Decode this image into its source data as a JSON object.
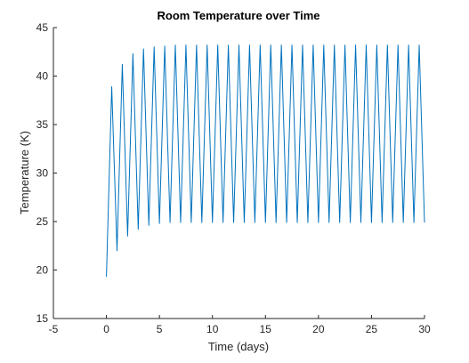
{
  "chart_data": {
    "type": "line",
    "title": "Room Temperature over Time",
    "xlabel": "Time (days)",
    "ylabel": "Temperature (K)",
    "xlim": [
      -5,
      30
    ],
    "ylim": [
      15,
      45
    ],
    "xticks": [
      -5,
      0,
      5,
      10,
      15,
      20,
      25,
      30
    ],
    "yticks": [
      15,
      20,
      25,
      30,
      35,
      40,
      45
    ],
    "grid": false,
    "legend": "none",
    "series": [
      {
        "color": "#0072BD",
        "x": [
          0,
          0.5,
          1,
          1.5,
          2,
          2.5,
          3,
          3.5,
          4,
          4.5,
          5,
          5.5,
          6,
          6.5,
          7,
          7.5,
          8,
          8.5,
          9,
          9.5,
          10,
          10.5,
          11,
          11.5,
          12,
          12.5,
          13,
          13.5,
          14,
          14.5,
          15,
          15.5,
          16,
          16.5,
          17,
          17.5,
          18,
          18.5,
          19,
          19.5,
          20,
          20.5,
          21,
          21.5,
          22,
          22.5,
          23,
          23.5,
          24,
          24.5,
          25,
          25.5,
          26,
          26.5,
          27,
          27.5,
          28,
          28.5,
          29,
          29.5,
          30
        ],
        "y": [
          19.3,
          38.9,
          22.0,
          41.2,
          23.5,
          42.3,
          24.2,
          42.8,
          24.6,
          43.0,
          24.8,
          43.1,
          24.9,
          43.2,
          24.9,
          43.2,
          24.9,
          43.2,
          24.9,
          43.2,
          24.9,
          43.2,
          24.9,
          43.2,
          24.9,
          43.2,
          24.9,
          43.2,
          24.9,
          43.2,
          24.9,
          43.2,
          24.9,
          43.2,
          24.9,
          43.2,
          24.9,
          43.2,
          24.9,
          43.2,
          24.9,
          43.2,
          24.9,
          43.2,
          24.9,
          43.2,
          24.9,
          43.2,
          24.9,
          43.2,
          24.9,
          43.2,
          24.9,
          43.2,
          24.9,
          43.2,
          24.9,
          43.2,
          24.9,
          43.2,
          24.9
        ]
      }
    ]
  }
}
